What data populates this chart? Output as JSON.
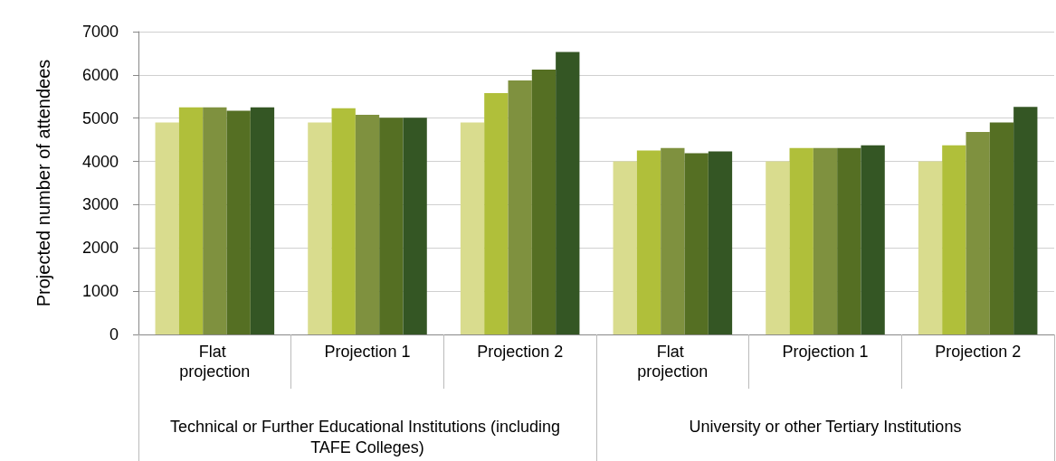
{
  "chart_data": {
    "type": "bar",
    "ylabel": "Projected number of attendees",
    "categories": [
      "Flat projection",
      "Projection 1",
      "Projection 2",
      "Flat projection",
      "Projection 1",
      "Projection 2"
    ],
    "annotations": [
      "Technical or Further Educational Institutions (including TAFE Colleges)",
      "University or other Tertiary Institutions"
    ],
    "series": [
      {
        "color": "#d9dc8e",
        "values": [
          4900,
          4900,
          4900,
          4000,
          4000,
          4000
        ]
      },
      {
        "color": "#b0bf3a",
        "values": [
          5250,
          5230,
          5580,
          4250,
          4310,
          4370
        ]
      },
      {
        "color": "#7f913f",
        "values": [
          5250,
          5080,
          5870,
          4310,
          4310,
          4680
        ]
      },
      {
        "color": "#556f23",
        "values": [
          5170,
          5010,
          6120,
          4190,
          4310,
          4900
        ]
      },
      {
        "color": "#345624",
        "values": [
          5250,
          5010,
          6530,
          4230,
          4370,
          5260
        ]
      }
    ],
    "ylim": [
      0,
      7000
    ],
    "yticks": [
      0,
      1000,
      2000,
      3000,
      4000,
      5000,
      6000,
      7000
    ],
    "grid": "y"
  }
}
